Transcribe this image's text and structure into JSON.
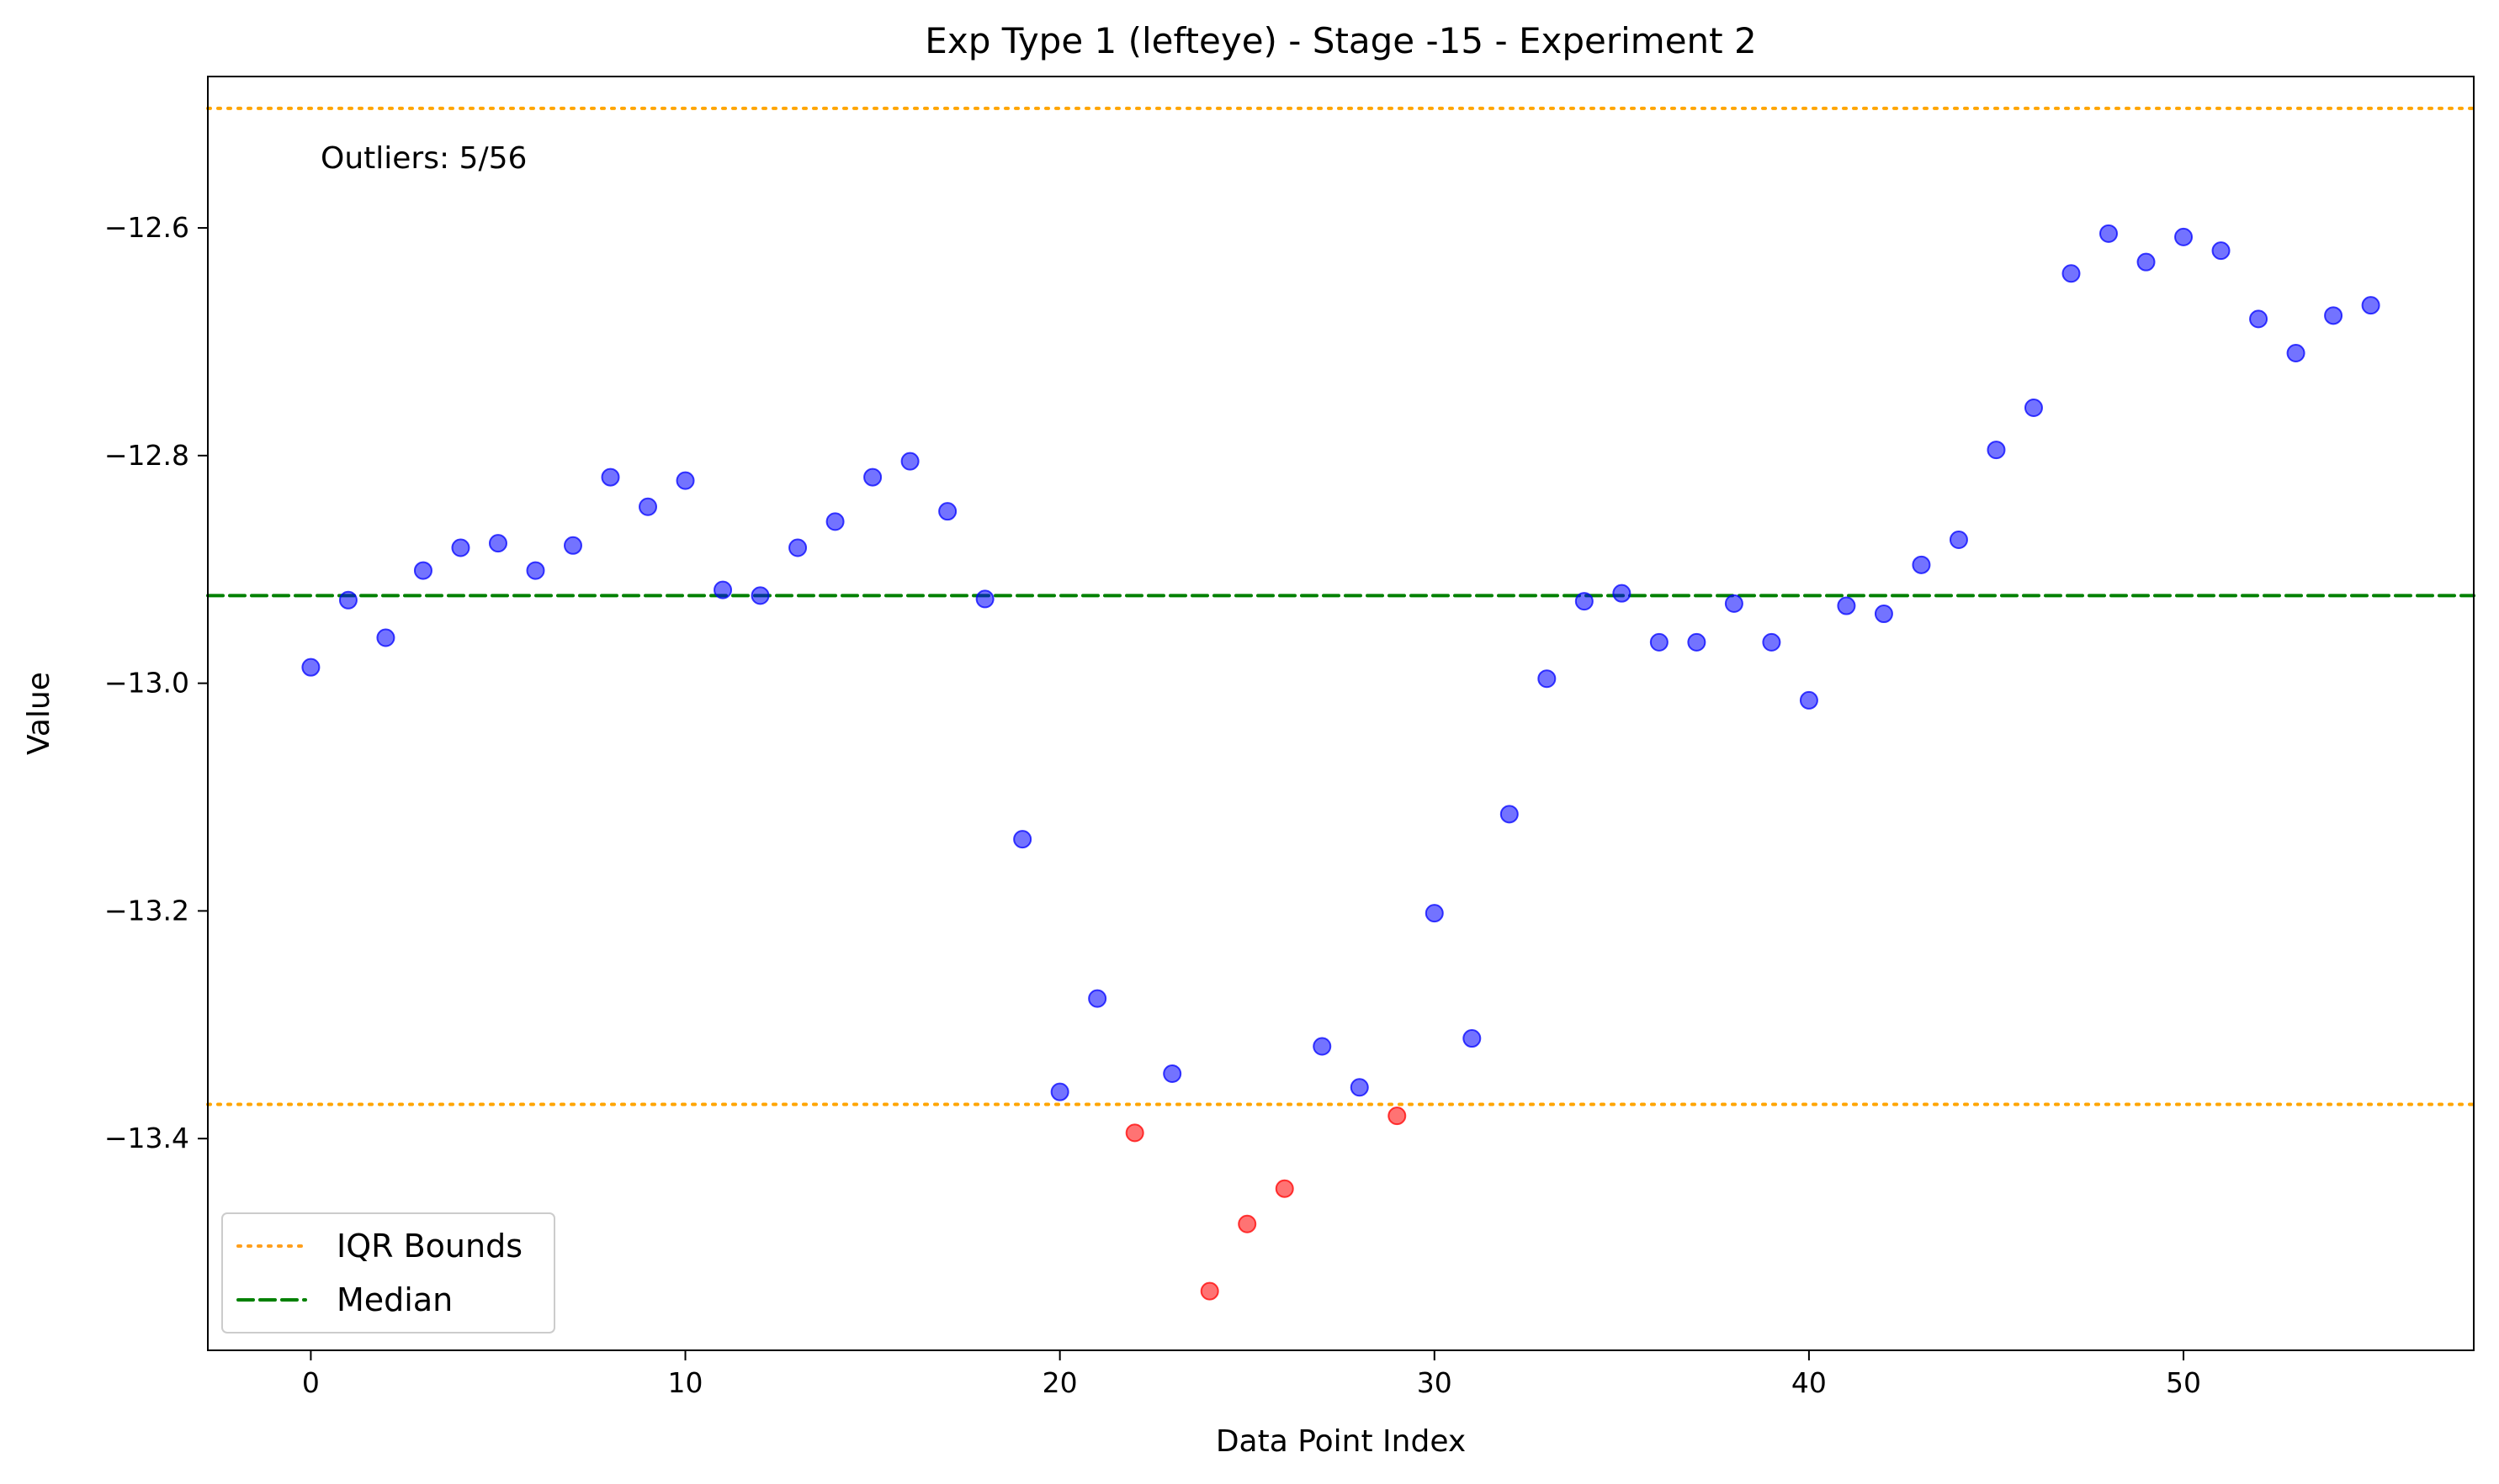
{
  "chart_data": {
    "type": "scatter",
    "title": "Exp Type 1 (lefteye) - Stage -15 - Experiment 2",
    "xlabel": "Data Point Index",
    "ylabel": "Value",
    "xlim": [
      -2.75,
      57.75
    ],
    "ylim": [
      -13.586,
      -12.467
    ],
    "xticks": [
      0,
      10,
      20,
      30,
      40,
      50
    ],
    "xtick_labels": [
      "0",
      "10",
      "20",
      "30",
      "40",
      "50"
    ],
    "yticks": [
      -12.6,
      -12.8,
      -13.0,
      -13.2,
      -13.4
    ],
    "ytick_labels": [
      "−12.6",
      "−12.8",
      "−13.0",
      "−13.2",
      "−13.4"
    ],
    "grid": false,
    "legend_position": "lower-left",
    "points": [
      {
        "x": 0,
        "y": -12.986,
        "outlier": false
      },
      {
        "x": 1,
        "y": -12.927,
        "outlier": false
      },
      {
        "x": 2,
        "y": -12.96,
        "outlier": false
      },
      {
        "x": 3,
        "y": -12.901,
        "outlier": false
      },
      {
        "x": 4,
        "y": -12.881,
        "outlier": false
      },
      {
        "x": 5,
        "y": -12.877,
        "outlier": false
      },
      {
        "x": 6,
        "y": -12.901,
        "outlier": false
      },
      {
        "x": 7,
        "y": -12.879,
        "outlier": false
      },
      {
        "x": 8,
        "y": -12.819,
        "outlier": false
      },
      {
        "x": 9,
        "y": -12.845,
        "outlier": false
      },
      {
        "x": 10,
        "y": -12.822,
        "outlier": false
      },
      {
        "x": 11,
        "y": -12.918,
        "outlier": false
      },
      {
        "x": 12,
        "y": -12.923,
        "outlier": false
      },
      {
        "x": 13,
        "y": -12.881,
        "outlier": false
      },
      {
        "x": 14,
        "y": -12.858,
        "outlier": false
      },
      {
        "x": 15,
        "y": -12.819,
        "outlier": false
      },
      {
        "x": 16,
        "y": -12.805,
        "outlier": false
      },
      {
        "x": 17,
        "y": -12.849,
        "outlier": false
      },
      {
        "x": 18,
        "y": -12.926,
        "outlier": false
      },
      {
        "x": 19,
        "y": -13.137,
        "outlier": false
      },
      {
        "x": 20,
        "y": -13.359,
        "outlier": false
      },
      {
        "x": 21,
        "y": -13.277,
        "outlier": false
      },
      {
        "x": 22,
        "y": -13.395,
        "outlier": true
      },
      {
        "x": 23,
        "y": -13.343,
        "outlier": false
      },
      {
        "x": 24,
        "y": -13.534,
        "outlier": true
      },
      {
        "x": 25,
        "y": -13.475,
        "outlier": true
      },
      {
        "x": 26,
        "y": -13.444,
        "outlier": true
      },
      {
        "x": 27,
        "y": -13.319,
        "outlier": false
      },
      {
        "x": 28,
        "y": -13.355,
        "outlier": false
      },
      {
        "x": 29,
        "y": -13.38,
        "outlier": true
      },
      {
        "x": 30,
        "y": -13.202,
        "outlier": false
      },
      {
        "x": 31,
        "y": -13.312,
        "outlier": false
      },
      {
        "x": 32,
        "y": -13.115,
        "outlier": false
      },
      {
        "x": 33,
        "y": -12.996,
        "outlier": false
      },
      {
        "x": 34,
        "y": -12.928,
        "outlier": false
      },
      {
        "x": 35,
        "y": -12.921,
        "outlier": false
      },
      {
        "x": 36,
        "y": -12.964,
        "outlier": false
      },
      {
        "x": 37,
        "y": -12.964,
        "outlier": false
      },
      {
        "x": 38,
        "y": -12.93,
        "outlier": false
      },
      {
        "x": 39,
        "y": -12.964,
        "outlier": false
      },
      {
        "x": 40,
        "y": -13.015,
        "outlier": false
      },
      {
        "x": 41,
        "y": -12.932,
        "outlier": false
      },
      {
        "x": 42,
        "y": -12.939,
        "outlier": false
      },
      {
        "x": 43,
        "y": -12.896,
        "outlier": false
      },
      {
        "x": 44,
        "y": -12.874,
        "outlier": false
      },
      {
        "x": 45,
        "y": -12.795,
        "outlier": false
      },
      {
        "x": 46,
        "y": -12.758,
        "outlier": false
      },
      {
        "x": 47,
        "y": -12.64,
        "outlier": false
      },
      {
        "x": 48,
        "y": -12.605,
        "outlier": false
      },
      {
        "x": 49,
        "y": -12.63,
        "outlier": false
      },
      {
        "x": 50,
        "y": -12.608,
        "outlier": false
      },
      {
        "x": 51,
        "y": -12.62,
        "outlier": false
      },
      {
        "x": 52,
        "y": -12.68,
        "outlier": false
      },
      {
        "x": 53,
        "y": -12.71,
        "outlier": false
      },
      {
        "x": 54,
        "y": -12.677,
        "outlier": false
      },
      {
        "x": 55,
        "y": -12.668,
        "outlier": false
      }
    ],
    "reference_lines": {
      "iqr_upper": -12.495,
      "iqr_lower": -13.37,
      "median": -12.923
    },
    "annotation": "Outliers: 5/56",
    "legend": [
      {
        "label": "IQR Bounds",
        "style": "dotted",
        "color": "#ff9f1c"
      },
      {
        "label": "Median",
        "style": "dashed",
        "color": "#008000"
      }
    ],
    "colors": {
      "normal": "#0000ff",
      "outlier": "#ff0000",
      "iqr": "#ffa500",
      "median": "#008000"
    }
  }
}
